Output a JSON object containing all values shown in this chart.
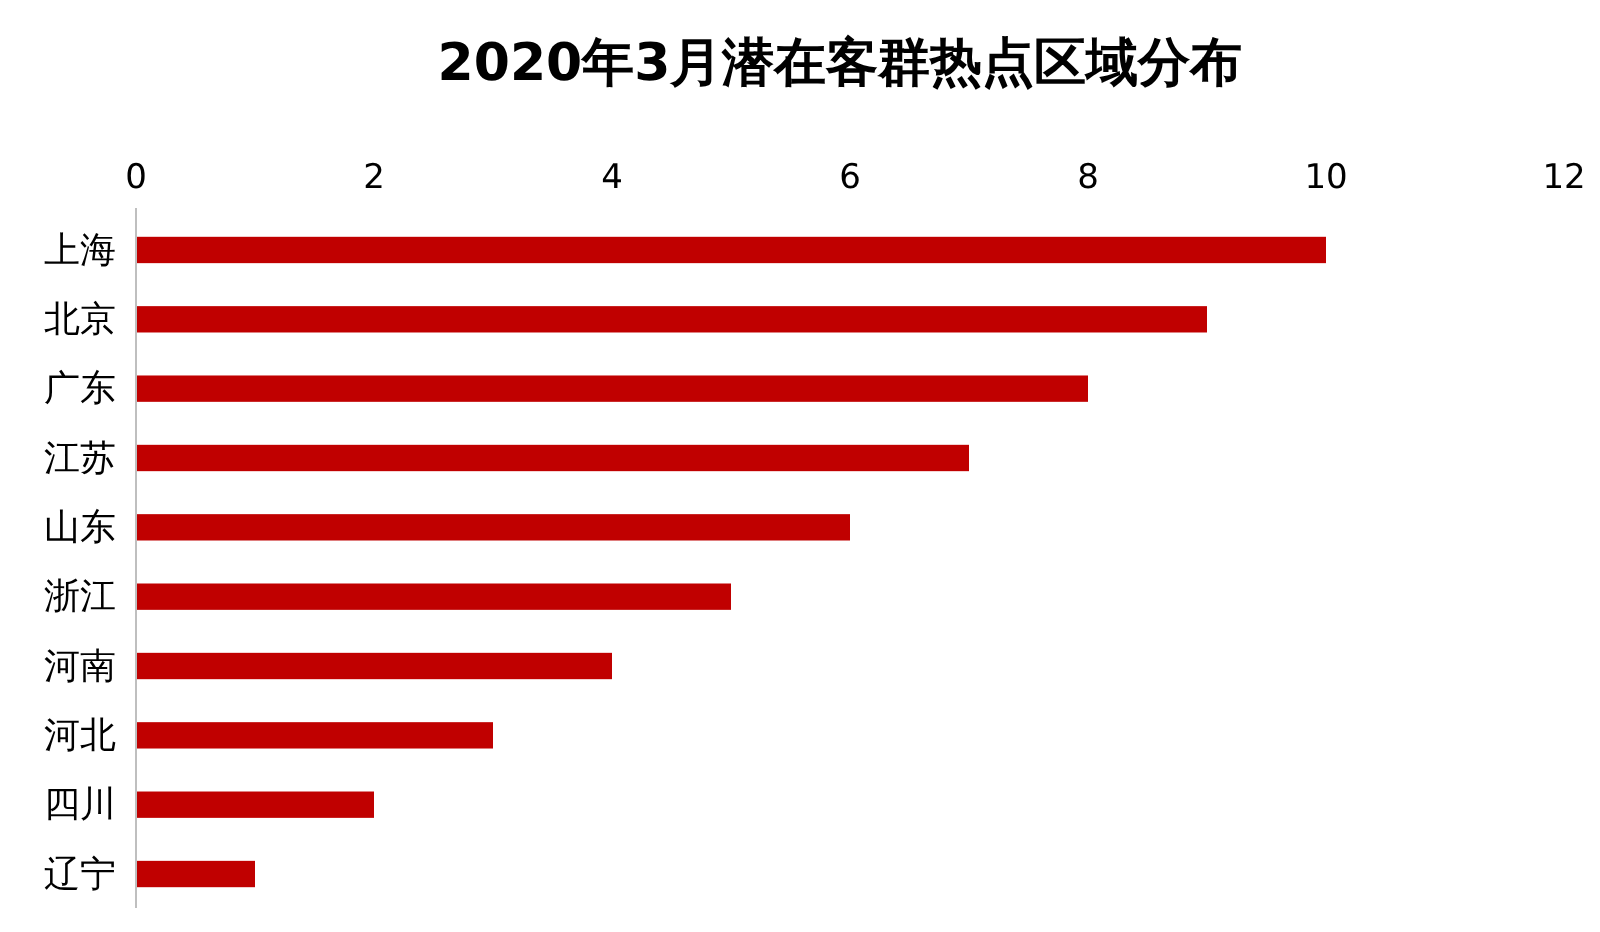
{
  "chart_data": {
    "type": "bar",
    "orientation": "horizontal",
    "title": "2020年3月潜在客群热点区域分布",
    "categories": [
      "上海",
      "北京",
      "广东",
      "江苏",
      "山东",
      "浙江",
      "河南",
      "河北",
      "四川",
      "辽宁"
    ],
    "values": [
      10,
      9,
      8,
      7,
      6,
      5,
      4,
      3,
      2,
      1
    ],
    "color": "#c00000",
    "xlim": [
      0,
      12
    ],
    "xticks": [
      0,
      2,
      4,
      6,
      8,
      10,
      12
    ],
    "grid": false
  }
}
